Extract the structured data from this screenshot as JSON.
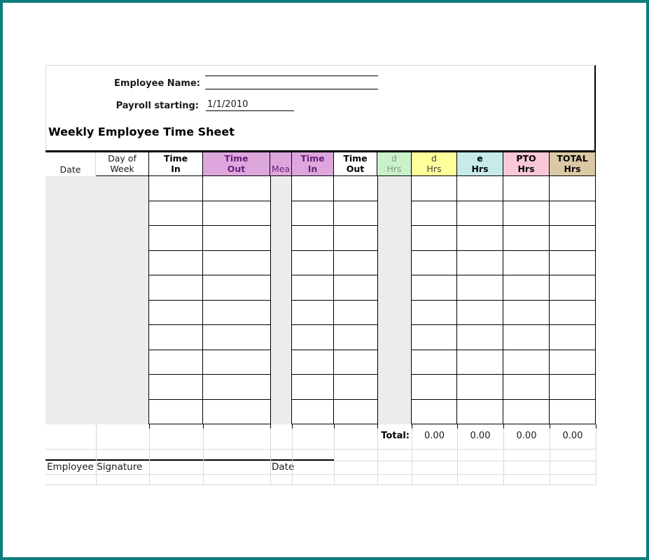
{
  "page": {
    "frame_color": "#0c7d7e",
    "shaded_cell_color": "#ececec",
    "gridline_color": "#d9d9d9"
  },
  "form": {
    "employee_name_label": "Employee Name:",
    "employee_name_value": "",
    "payroll_label": "Payroll starting:",
    "payroll_value": "1/1/2010",
    "sheet_title": "Weekly Employee Time Sheet"
  },
  "table": {
    "headers": [
      {
        "id": "date",
        "lines": [
          "Date"
        ],
        "bg": "#ffffff",
        "color": "#1a1a1a",
        "bold": false
      },
      {
        "id": "day-of-week",
        "lines": [
          "Day of",
          "Week"
        ],
        "bg": "#ffffff",
        "color": "#1a1a1a",
        "bold": false
      },
      {
        "id": "time-in-1",
        "lines": [
          "Time",
          "In"
        ],
        "bg": "#ffffff",
        "color": "#000000",
        "bold": true
      },
      {
        "id": "time-out-1",
        "lines": [
          "Time",
          "Out"
        ],
        "bg": "#dda7de",
        "color": "#6a1d78",
        "bold": true
      },
      {
        "id": "meal",
        "lines": [
          "Mea"
        ],
        "bg": "#dda7de",
        "color": "#6a1d78",
        "bold": false
      },
      {
        "id": "time-in-2",
        "lines": [
          "Time",
          "In"
        ],
        "bg": "#dda7de",
        "color": "#6a1d78",
        "bold": true
      },
      {
        "id": "time-out-2",
        "lines": [
          "Time",
          "Out"
        ],
        "bg": "#ffffff",
        "color": "#000000",
        "bold": true
      },
      {
        "id": "d-hrs-green",
        "lines": [
          "d",
          "Hrs"
        ],
        "bg": "#cbf1cb",
        "color": "#7e9d7e",
        "bold": false
      },
      {
        "id": "d-hrs-yellow",
        "lines": [
          "d",
          "Hrs"
        ],
        "bg": "#ffff9b",
        "color": "#3c3c3c",
        "bold": false
      },
      {
        "id": "e-hrs",
        "lines": [
          "e",
          "Hrs"
        ],
        "bg": "#c8eaea",
        "color": "#000000",
        "bold": true
      },
      {
        "id": "pto-hrs",
        "lines": [
          "PTO",
          "Hrs"
        ],
        "bg": "#f8c8d9",
        "color": "#000000",
        "bold": true
      },
      {
        "id": "total-hrs",
        "lines": [
          "TOTAL",
          "Hrs"
        ],
        "bg": "#dbc9a6",
        "color": "#000000",
        "bold": true
      }
    ],
    "body_rows": 10
  },
  "totals": {
    "label": "Total:",
    "values": [
      "0.00",
      "0.00",
      "0.00",
      "0.00"
    ]
  },
  "footer": {
    "signature_label": "Employee Signature",
    "date_label": "Date"
  }
}
